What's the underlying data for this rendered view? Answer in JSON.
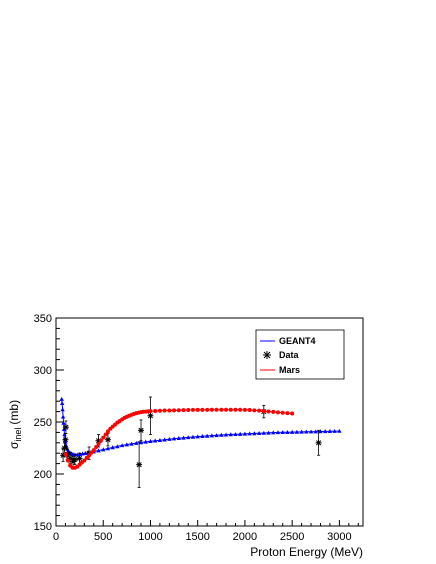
{
  "chart_data": {
    "type": "scatter",
    "xlabel": "Proton Energy (MeV)",
    "ylabel_symbol": "σ",
    "ylabel_subscript": "inel",
    "ylabel_unit": "(mb)",
    "xlim": [
      0,
      3250
    ],
    "ylim": [
      150,
      350
    ],
    "x_ticks": [
      0,
      500,
      1000,
      1500,
      2000,
      2500,
      3000
    ],
    "y_ticks": [
      150,
      200,
      250,
      300,
      350
    ],
    "legend_position": "top-right",
    "grid": false,
    "series": [
      {
        "name": "GEANT4",
        "color": "#0000ff",
        "marker": "triangle",
        "style": "line+markers",
        "x": [
          60,
          65,
          70,
          75,
          80,
          85,
          90,
          95,
          100,
          110,
          120,
          130,
          140,
          150,
          165,
          180,
          200,
          225,
          250,
          280,
          310,
          340,
          370,
          400,
          450,
          500,
          550,
          600,
          650,
          700,
          750,
          800,
          850,
          900,
          950,
          1000,
          1050,
          1100,
          1150,
          1200,
          1250,
          1300,
          1350,
          1400,
          1450,
          1500,
          1550,
          1600,
          1650,
          1700,
          1750,
          1800,
          1850,
          1900,
          1950,
          2000,
          2050,
          2100,
          2150,
          2200,
          2250,
          2300,
          2350,
          2400,
          2450,
          2500,
          2550,
          2600,
          2650,
          2700,
          2750,
          2800,
          2850,
          2900,
          2950,
          3000
        ],
        "y": [
          272,
          268,
          262,
          255,
          249,
          243,
          238,
          234,
          231,
          227,
          224,
          222,
          221,
          220,
          219.5,
          219,
          218.5,
          218.5,
          219,
          219.5,
          220,
          220.5,
          221,
          221.5,
          222.5,
          223.5,
          224.5,
          225.5,
          226.5,
          227.5,
          228.3,
          229,
          229.7,
          230.3,
          230.9,
          231.5,
          232,
          232.5,
          233,
          233.5,
          234,
          234.4,
          234.8,
          235.2,
          235.6,
          236,
          236.3,
          236.6,
          236.9,
          237.2,
          237.5,
          237.8,
          238,
          238.2,
          238.4,
          238.6,
          238.8,
          239,
          239.2,
          239.4,
          239.6,
          239.8,
          240,
          240.1,
          240.2,
          240.3,
          240.4,
          240.5,
          240.6,
          240.7,
          240.8,
          240.9,
          241,
          241.1,
          241.2,
          241.3
        ]
      },
      {
        "name": "Data",
        "color": "#000000",
        "marker": "star",
        "style": "markers+errorbars",
        "x": [
          75,
          90,
          100,
          105,
          120,
          150,
          180,
          200,
          250,
          350,
          450,
          550,
          880,
          900,
          1000,
          2200,
          2780
        ],
        "y": [
          218,
          225,
          233,
          245,
          219,
          215,
          212,
          214,
          215,
          220,
          232,
          233,
          209,
          242,
          256,
          260,
          230
        ],
        "err": [
          6,
          5,
          6,
          6,
          5,
          6,
          5,
          5,
          5,
          6,
          6,
          6,
          22,
          10,
          18,
          6,
          12
        ]
      },
      {
        "name": "Mars",
        "color": "#ff0000",
        "marker": "circle",
        "style": "line+markers",
        "x": [
          100,
          125,
          150,
          175,
          200,
          225,
          250,
          275,
          300,
          325,
          350,
          375,
          400,
          425,
          450,
          475,
          500,
          525,
          550,
          575,
          600,
          625,
          650,
          675,
          700,
          725,
          750,
          775,
          800,
          825,
          850,
          875,
          900,
          925,
          950,
          975,
          1000,
          1050,
          1100,
          1150,
          1200,
          1250,
          1300,
          1350,
          1400,
          1450,
          1500,
          1550,
          1600,
          1650,
          1700,
          1750,
          1800,
          1850,
          1900,
          1950,
          2000,
          2050,
          2100,
          2150,
          2200,
          2250,
          2300,
          2350,
          2400,
          2450,
          2500
        ],
        "y": [
          219,
          213,
          208,
          206,
          206,
          207,
          209,
          211,
          213,
          215.5,
          218,
          220.5,
          223,
          226,
          229,
          232,
          235,
          238,
          241,
          243.5,
          245.5,
          247.5,
          249.5,
          251,
          252.5,
          254,
          255,
          256,
          257,
          257.8,
          258.5,
          259,
          259.5,
          259.8,
          260,
          260.2,
          260.4,
          260.6,
          260.8,
          261,
          261.1,
          261.2,
          261.3,
          261.4,
          261.5,
          261.6,
          261.6,
          261.7,
          261.7,
          261.8,
          261.8,
          261.8,
          261.8,
          261.8,
          261.8,
          261.8,
          261.7,
          261.5,
          261.2,
          260.9,
          260.5,
          260.1,
          259.7,
          259.3,
          258.9,
          258.5,
          258.2
        ]
      }
    ]
  }
}
